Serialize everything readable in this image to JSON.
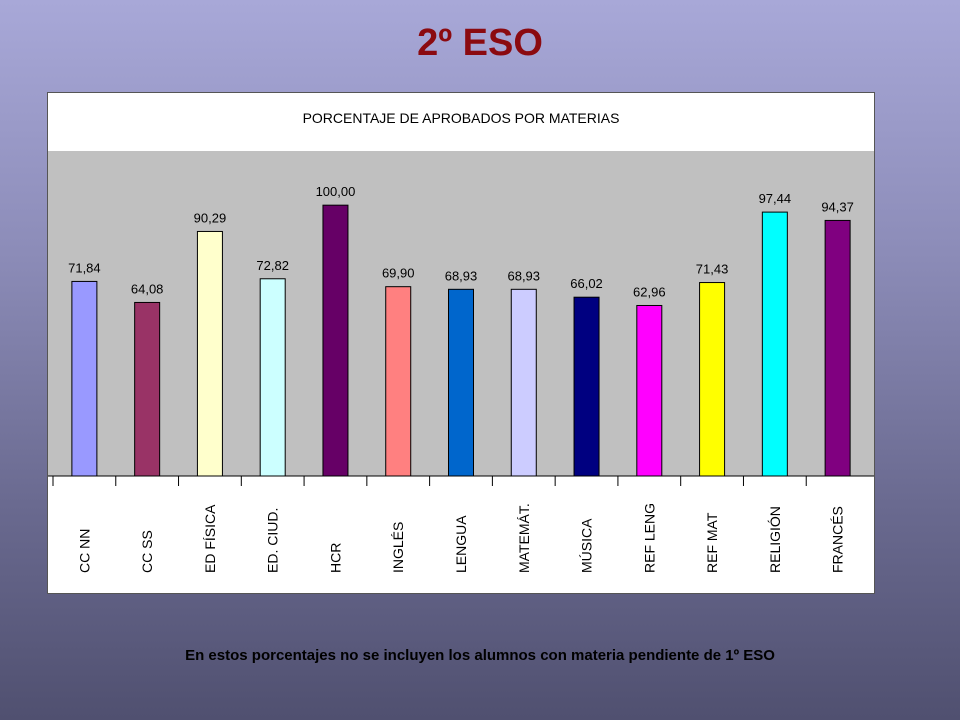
{
  "slide": {
    "title": "2º ESO",
    "footnote": "En estos porcentajes no se incluyen los alumnos con materia pendiente de 1º ESO"
  },
  "chart_data": {
    "type": "bar",
    "title": "PORCENTAJE DE APROBADOS POR MATERIAS",
    "categories": [
      "CC NN",
      "CC SS",
      "ED FÍSICA",
      "ED. CIUD.",
      "HCR",
      "INGLÉS",
      "LENGUA",
      "MATEMÁT.",
      "MÚSICA",
      "REF LENG",
      "REF MAT",
      "RELIGIÓN",
      "FRANCÉS"
    ],
    "values": [
      71.84,
      64.08,
      90.29,
      72.82,
      100.0,
      69.9,
      68.93,
      68.93,
      66.02,
      62.96,
      71.43,
      97.44,
      94.37
    ],
    "data_labels": [
      "71,84",
      "64,08",
      "90,29",
      "72,82",
      "100,00",
      "69,90",
      "68,93",
      "68,93",
      "66,02",
      "62,96",
      "71,43",
      "97,44",
      "94,37"
    ],
    "colors": [
      "#9999ff",
      "#993366",
      "#ffffcc",
      "#ccffff",
      "#660066",
      "#ff8080",
      "#0066cc",
      "#ccccff",
      "#000080",
      "#ff00ff",
      "#ffff00",
      "#00ffff",
      "#800080"
    ],
    "plot_background": "#c0c0c0",
    "ylim": [
      0,
      120
    ],
    "grid": false,
    "legend": "none"
  }
}
